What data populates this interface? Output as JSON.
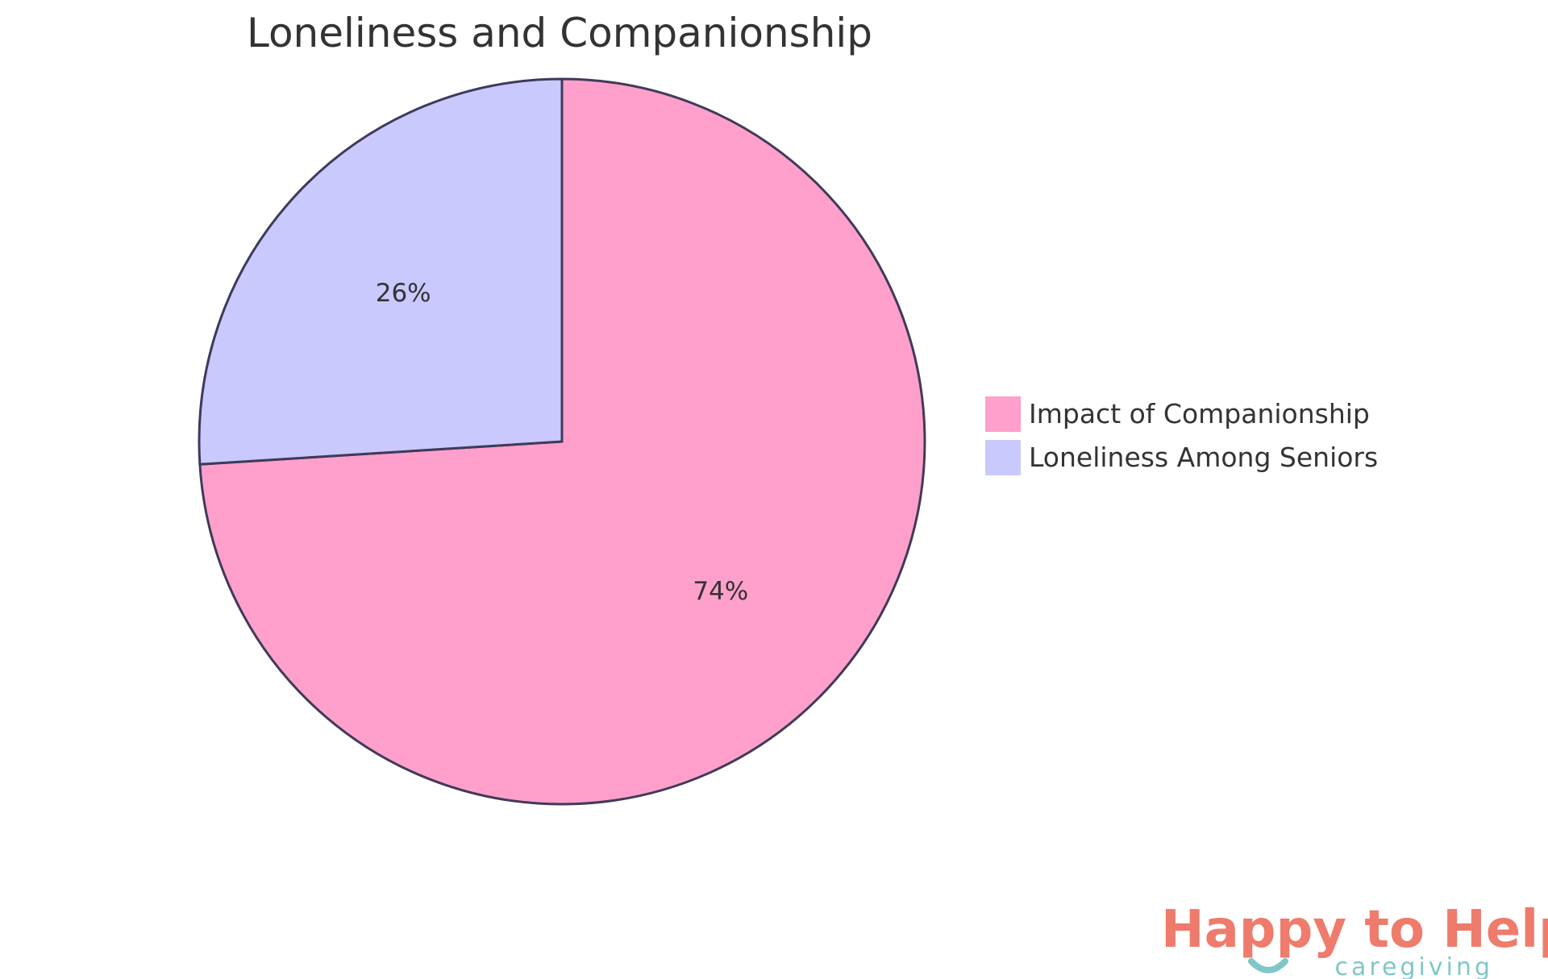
{
  "chart_data": {
    "type": "pie",
    "title": "Loneliness and Companionship",
    "slices": [
      {
        "label": "Impact of Companionship",
        "value": 74,
        "display": "74%",
        "color": "#fea0cb"
      },
      {
        "label": "Loneliness Among Seniors",
        "value": 26,
        "display": "26%",
        "color": "#c9c9fe"
      }
    ],
    "legend_position": "right",
    "stroke_color": "#3f3a5a"
  },
  "logo": {
    "main_text": "Happy to Help",
    "sub_text": "caregiving",
    "main_color": "#ee7b6c",
    "accent_color": "#7fc7c8"
  }
}
